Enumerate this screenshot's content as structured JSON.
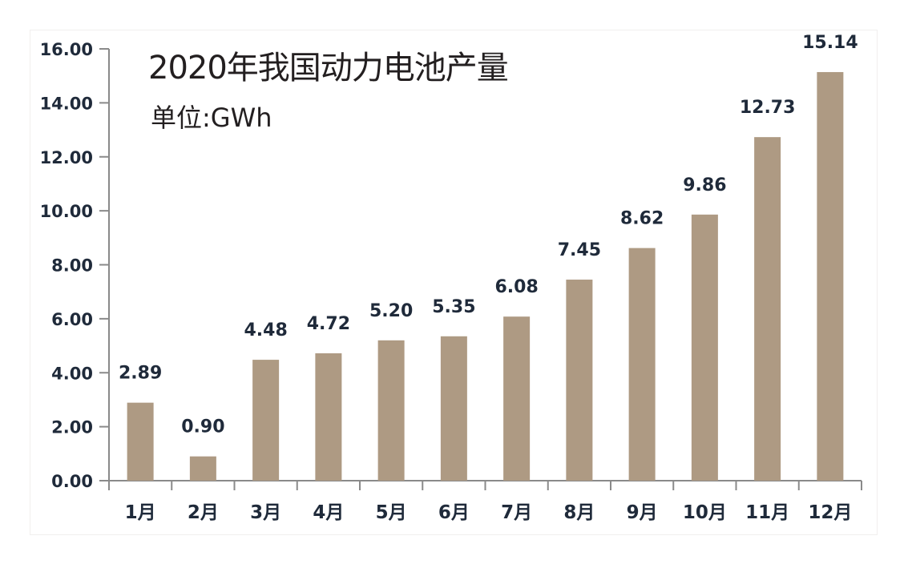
{
  "chart_data": {
    "type": "bar",
    "title": "2020年我国动力电池产量",
    "subtitle": "单位:GWh",
    "xlabel": "",
    "ylabel": "",
    "categories": [
      "1月",
      "2月",
      "3月",
      "4月",
      "5月",
      "6月",
      "7月",
      "8月",
      "9月",
      "10月",
      "11月",
      "12月"
    ],
    "values": [
      2.89,
      0.9,
      4.48,
      4.72,
      5.2,
      5.35,
      6.08,
      7.45,
      8.62,
      9.86,
      12.73,
      15.14
    ],
    "data_labels": [
      "2.89",
      "0.90",
      "4.48",
      "4.72",
      "5.20",
      "5.35",
      "6.08",
      "7.45",
      "8.62",
      "9.86",
      "12.73",
      "15.14"
    ],
    "ylim": [
      0,
      16
    ],
    "yticks": [
      0,
      2,
      4,
      6,
      8,
      10,
      12,
      14,
      16
    ],
    "ytick_labels": [
      "0.00",
      "2.00",
      "4.00",
      "6.00",
      "8.00",
      "10.00",
      "12.00",
      "14.00",
      "16.00"
    ],
    "grid": false,
    "legend": "none",
    "colors": {
      "bar": "#ae9a83",
      "axis": "#8a8a8a",
      "text": "#1f2a3a"
    }
  }
}
